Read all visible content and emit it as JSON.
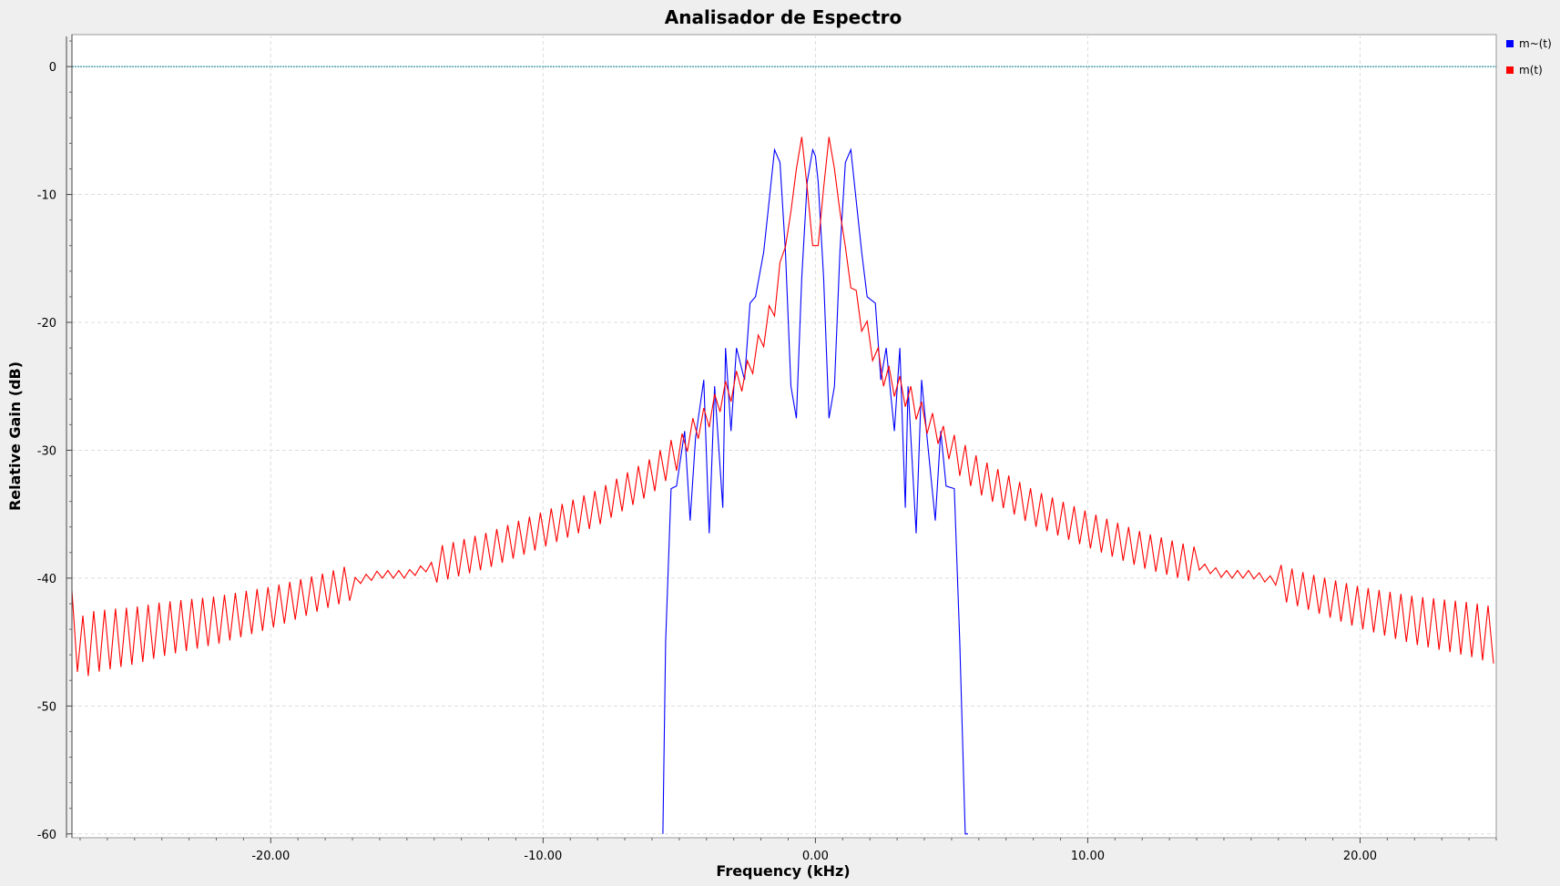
{
  "chart_data": {
    "type": "line",
    "title": "Analisador de Espectro",
    "xlabel": "Frequency (kHz)",
    "ylabel": "Relative Gain (dB)",
    "xlim": [
      -27.3,
      25.0
    ],
    "ylim": [
      -60.3,
      2.5
    ],
    "xticks": [
      -20,
      -10,
      0,
      10,
      20
    ],
    "xtick_labels": [
      "-20.00",
      "-10.00",
      "0.00",
      "10.00",
      "20.00"
    ],
    "yticks": [
      0,
      -10,
      -20,
      -30,
      -40,
      -50,
      -60
    ],
    "ytick_labels": [
      "0",
      "-10",
      "-20",
      "-30",
      "-40",
      "-50",
      "-60"
    ],
    "grid": true,
    "legend_position": "right",
    "reference_line": {
      "y": 0,
      "color": "#00808b"
    },
    "series": [
      {
        "name": "m~(t)",
        "color": "#0000ff",
        "x": [
          -5.6,
          -5.5,
          -5.3,
          -5.1,
          -4.8,
          -4.6,
          -4.4,
          -4.1,
          -3.9,
          -3.7,
          -3.4,
          -3.3,
          -3.1,
          -2.9,
          -2.6,
          -2.4,
          -2.2,
          -1.9,
          -1.7,
          -1.5,
          -1.3,
          -1.1,
          -0.9,
          -0.7,
          -0.5,
          -0.3,
          -0.1,
          0.0,
          0.1,
          0.3,
          0.5,
          0.7,
          0.9,
          1.1,
          1.3,
          1.5,
          1.7,
          1.9,
          2.2,
          2.4,
          2.6,
          2.9,
          3.1,
          3.3,
          3.4,
          3.7,
          3.9,
          4.1,
          4.4,
          4.6,
          4.8,
          5.1,
          5.3,
          5.5,
          5.6
        ],
        "y": [
          -60.0,
          -45.0,
          -33.0,
          -32.8,
          -28.5,
          -35.5,
          -29.0,
          -24.5,
          -36.5,
          -25.0,
          -34.5,
          -22.0,
          -28.5,
          -22.0,
          -24.5,
          -18.5,
          -18.0,
          -14.5,
          -10.5,
          -6.5,
          -7.5,
          -14.5,
          -25.0,
          -27.5,
          -16.5,
          -9.0,
          -6.5,
          -7.0,
          -9.0,
          -16.5,
          -27.5,
          -25.0,
          -14.5,
          -7.5,
          -6.5,
          -10.5,
          -14.5,
          -18.0,
          -18.5,
          -24.5,
          -22.0,
          -28.5,
          -22.0,
          -34.5,
          -25.0,
          -36.5,
          -24.5,
          -29.0,
          -35.5,
          -28.5,
          -32.8,
          -33.0,
          -45.0,
          -60.0,
          -60.0
        ]
      },
      {
        "name": "m(t)",
        "color": "#ff0000",
        "x": [
          -27.3,
          -27.0,
          -26.5,
          -26.0,
          -25.0,
          -24.0,
          -22.0,
          -20.0,
          -18.0,
          -17.0,
          -16.0,
          -15.0,
          -14.0,
          -12.0,
          -10.0,
          -8.0,
          -6.0,
          -5.0,
          -4.5,
          -4.0,
          -3.5,
          -3.0,
          -2.5,
          -2.0,
          -1.5,
          -1.0,
          -0.7,
          -0.5,
          -0.3,
          -0.1,
          0.0,
          0.1,
          0.3,
          0.5,
          0.7,
          1.0,
          1.5,
          2.0,
          2.5,
          3.0,
          3.5,
          4.0,
          4.5,
          5.0,
          6.0,
          8.0,
          10.0,
          12.0,
          14.0,
          15.0,
          16.0,
          17.0,
          18.0,
          20.0,
          22.0,
          24.0,
          25.0
        ],
        "y": [
          -43.5,
          -45.5,
          -45.0,
          -44.8,
          -44.5,
          -44.0,
          -43.3,
          -42.3,
          -41.0,
          -40.3,
          -39.7,
          -39.7,
          -39.0,
          -37.8,
          -36.2,
          -34.5,
          -32.0,
          -30.0,
          -28.5,
          -27.5,
          -26.0,
          -25.0,
          -24.0,
          -21.5,
          -18.5,
          -13.0,
          -8.0,
          -5.5,
          -9.5,
          -14.0,
          -18.0,
          -14.0,
          -9.5,
          -5.5,
          -8.0,
          -13.0,
          -18.5,
          -21.5,
          -24.0,
          -25.0,
          -26.0,
          -27.5,
          -28.5,
          -30.0,
          -32.0,
          -34.5,
          -36.2,
          -37.8,
          -39.0,
          -39.7,
          -39.7,
          -40.3,
          -41.0,
          -42.3,
          -43.3,
          -44.0,
          -44.5
        ]
      }
    ]
  }
}
